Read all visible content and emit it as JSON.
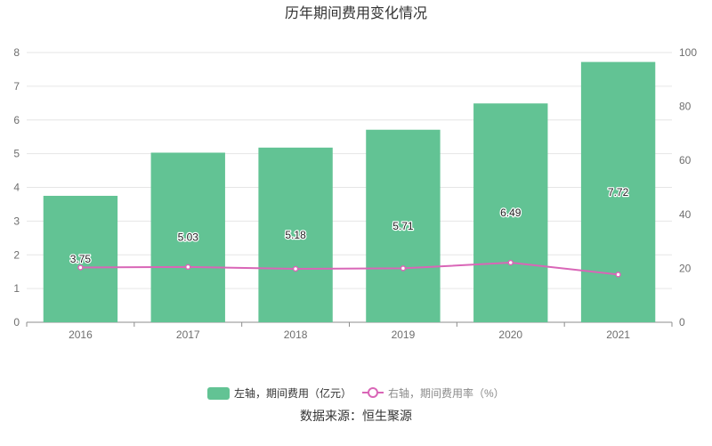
{
  "chart_data": {
    "type": "bar",
    "title": "历年期间费用变化情况",
    "categories": [
      "2016",
      "2017",
      "2018",
      "2019",
      "2020",
      "2021"
    ],
    "series": [
      {
        "name": "左轴，期间费用（亿元）",
        "type": "bar",
        "axis": "left",
        "values": [
          3.75,
          5.03,
          5.18,
          5.71,
          6.49,
          7.72
        ],
        "color": "#62c394"
      },
      {
        "name": "右轴，期间费用率（%）",
        "type": "line",
        "axis": "right",
        "values": [
          20.3,
          20.5,
          19.8,
          20.0,
          22.1,
          17.7
        ],
        "color": "#d966b7"
      }
    ],
    "y_left": {
      "min": 0,
      "max": 8,
      "ticks": [
        0,
        1,
        2,
        3,
        4,
        5,
        6,
        7,
        8
      ]
    },
    "y_right": {
      "min": 0,
      "max": 100,
      "ticks": [
        0,
        20,
        40,
        60,
        80,
        100
      ]
    },
    "grid": true,
    "legend_position": "bottom"
  },
  "source": "数据来源：恒生聚源"
}
